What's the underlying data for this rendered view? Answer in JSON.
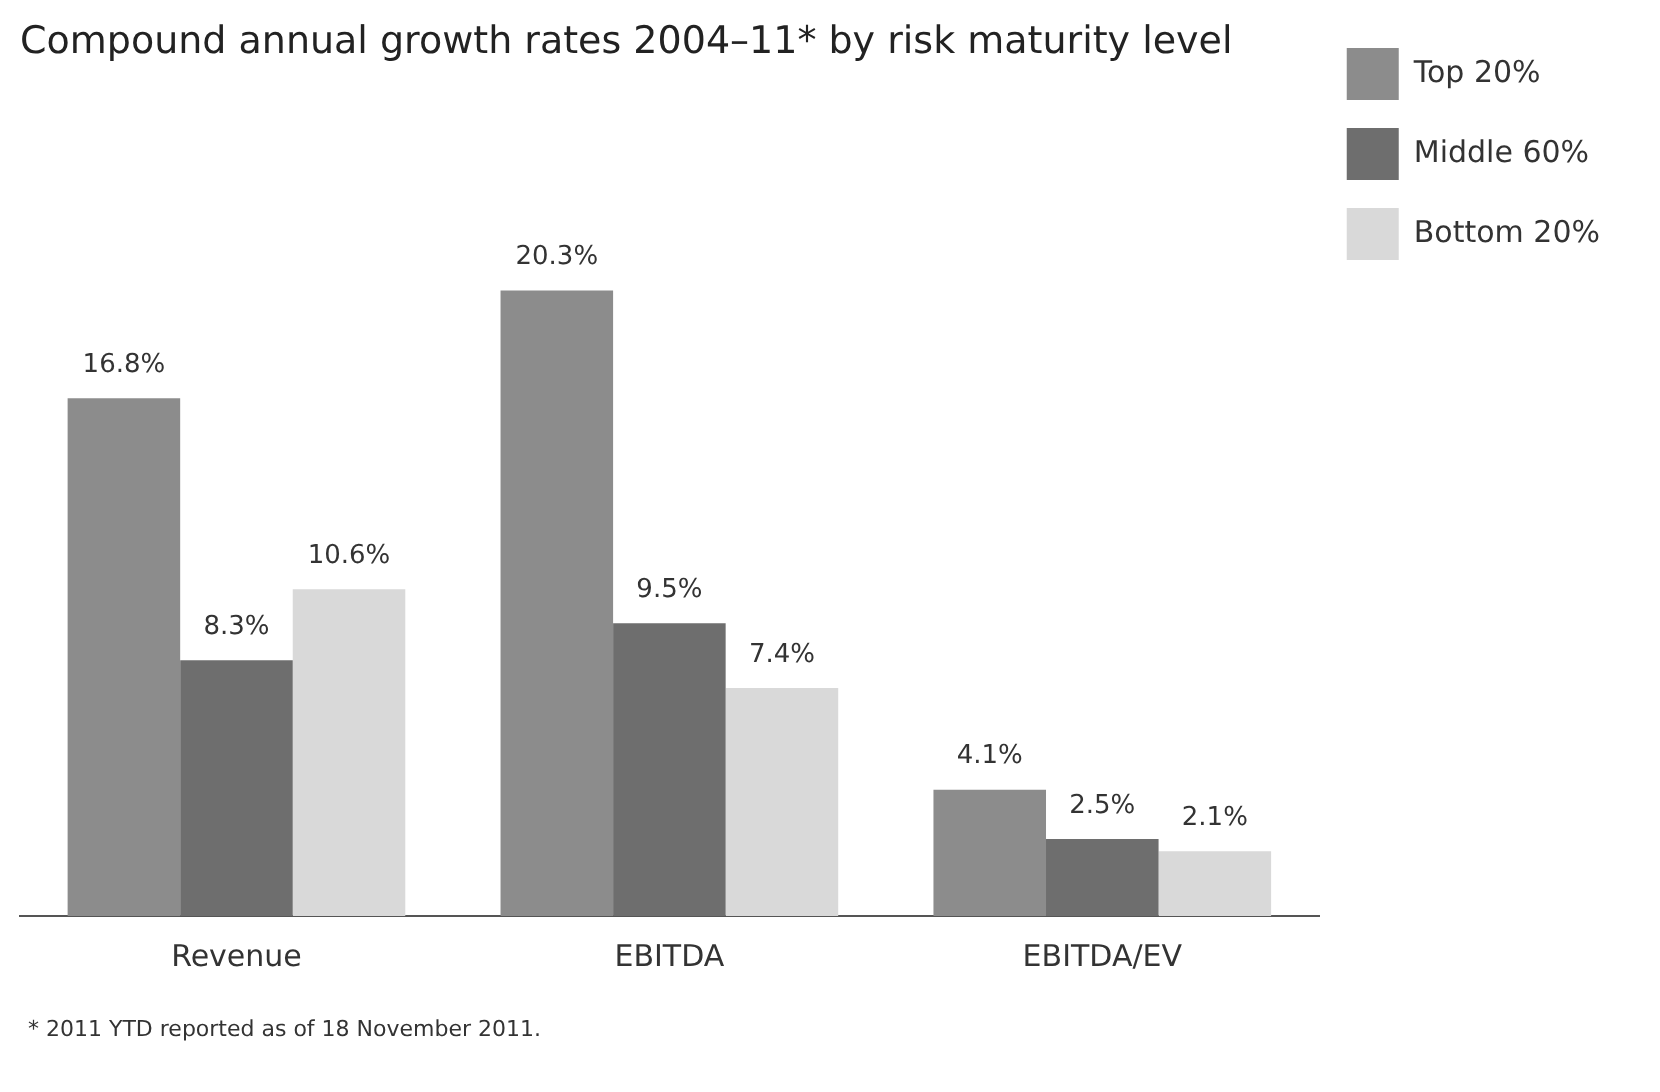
{
  "chart_data": {
    "type": "bar",
    "title": "Compound annual growth rates 2004–11* by risk maturity level",
    "categories": [
      "Revenue",
      "EBITDA",
      "EBITDA/EV"
    ],
    "series": [
      {
        "name": "Top 20%",
        "color": "#8c8c8c",
        "values": [
          16.8,
          20.3,
          4.1
        ],
        "value_labels": [
          "16.8%",
          "20.3%",
          "4.1%"
        ]
      },
      {
        "name": "Middle 60%",
        "color": "#6e6e6e",
        "values": [
          8.3,
          9.5,
          2.5
        ],
        "value_labels": [
          "8.3%",
          "9.5%",
          "2.5%"
        ]
      },
      {
        "name": "Bottom 20%",
        "color": "#d9d9d9",
        "values": [
          10.6,
          7.4,
          2.1
        ],
        "value_labels": [
          "10.6%",
          "7.4%",
          "2.1%"
        ]
      }
    ],
    "legend": "top right",
    "grid": false,
    "annotations": [
      "* 2011 YTD reported as of 18 November 2011."
    ]
  }
}
